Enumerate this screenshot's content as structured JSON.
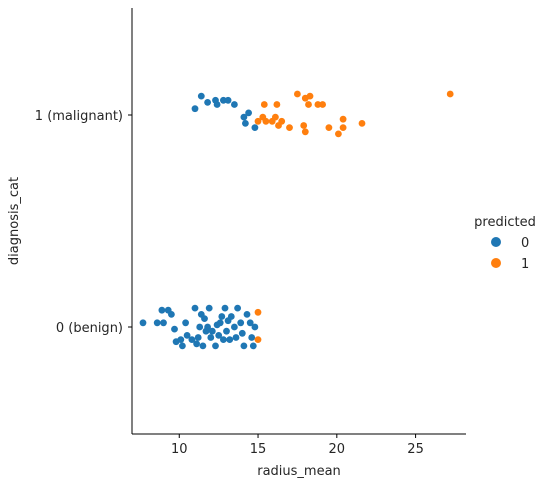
{
  "chart_data": {
    "type": "scatter",
    "subtype": "strip",
    "title": "",
    "xlabel": "radius_mean",
    "ylabel": "diagnosis_cat",
    "xlim": [
      7.0,
      28.2
    ],
    "xticks": [
      10,
      15,
      20,
      25
    ],
    "categories": [
      "1 (malignant)",
      "0 (benign)"
    ],
    "grid": false,
    "legend": {
      "title": "predicted",
      "placement": "right",
      "entries": [
        {
          "label": "0",
          "color": "#1f77b4"
        },
        {
          "label": "1",
          "color": "#ff7f0e"
        }
      ]
    },
    "series": [
      {
        "name": "0",
        "color": "#1f77b4",
        "points": [
          {
            "category": "1 (malignant)",
            "x": 11.0,
            "jitter": 0.03
          },
          {
            "category": "1 (malignant)",
            "x": 11.4,
            "jitter": 0.09
          },
          {
            "category": "1 (malignant)",
            "x": 11.8,
            "jitter": 0.06
          },
          {
            "category": "1 (malignant)",
            "x": 12.3,
            "jitter": 0.07
          },
          {
            "category": "1 (malignant)",
            "x": 12.4,
            "jitter": 0.05
          },
          {
            "category": "1 (malignant)",
            "x": 12.8,
            "jitter": 0.07
          },
          {
            "category": "1 (malignant)",
            "x": 13.1,
            "jitter": 0.07
          },
          {
            "category": "1 (malignant)",
            "x": 13.5,
            "jitter": 0.05
          },
          {
            "category": "1 (malignant)",
            "x": 14.1,
            "jitter": -0.01
          },
          {
            "category": "1 (malignant)",
            "x": 14.2,
            "jitter": -0.04
          },
          {
            "category": "1 (malignant)",
            "x": 14.4,
            "jitter": 0.01
          },
          {
            "category": "1 (malignant)",
            "x": 14.8,
            "jitter": -0.06
          },
          {
            "category": "0 (benign)",
            "x": 7.7,
            "jitter": 0.02
          },
          {
            "category": "0 (benign)",
            "x": 8.6,
            "jitter": 0.02
          },
          {
            "category": "0 (benign)",
            "x": 8.9,
            "jitter": 0.08
          },
          {
            "category": "0 (benign)",
            "x": 9.0,
            "jitter": 0.02
          },
          {
            "category": "0 (benign)",
            "x": 9.3,
            "jitter": 0.08
          },
          {
            "category": "0 (benign)",
            "x": 9.5,
            "jitter": 0.06
          },
          {
            "category": "0 (benign)",
            "x": 9.7,
            "jitter": -0.01
          },
          {
            "category": "0 (benign)",
            "x": 9.8,
            "jitter": -0.07
          },
          {
            "category": "0 (benign)",
            "x": 10.1,
            "jitter": -0.06
          },
          {
            "category": "0 (benign)",
            "x": 10.2,
            "jitter": -0.09
          },
          {
            "category": "0 (benign)",
            "x": 10.4,
            "jitter": 0.02
          },
          {
            "category": "0 (benign)",
            "x": 10.5,
            "jitter": -0.04
          },
          {
            "category": "0 (benign)",
            "x": 10.8,
            "jitter": -0.06
          },
          {
            "category": "0 (benign)",
            "x": 11.0,
            "jitter": 0.09
          },
          {
            "category": "0 (benign)",
            "x": 11.1,
            "jitter": -0.08
          },
          {
            "category": "0 (benign)",
            "x": 11.2,
            "jitter": -0.05
          },
          {
            "category": "0 (benign)",
            "x": 11.3,
            "jitter": 0.0
          },
          {
            "category": "0 (benign)",
            "x": 11.4,
            "jitter": 0.06
          },
          {
            "category": "0 (benign)",
            "x": 11.5,
            "jitter": -0.09
          },
          {
            "category": "0 (benign)",
            "x": 11.6,
            "jitter": 0.04
          },
          {
            "category": "0 (benign)",
            "x": 11.7,
            "jitter": -0.02
          },
          {
            "category": "0 (benign)",
            "x": 11.8,
            "jitter": 0.0
          },
          {
            "category": "0 (benign)",
            "x": 11.9,
            "jitter": 0.09
          },
          {
            "category": "0 (benign)",
            "x": 12.0,
            "jitter": -0.05
          },
          {
            "category": "0 (benign)",
            "x": 12.1,
            "jitter": -0.02
          },
          {
            "category": "0 (benign)",
            "x": 12.3,
            "jitter": -0.09
          },
          {
            "category": "0 (benign)",
            "x": 12.4,
            "jitter": 0.01
          },
          {
            "category": "0 (benign)",
            "x": 12.5,
            "jitter": -0.04
          },
          {
            "category": "0 (benign)",
            "x": 12.6,
            "jitter": 0.02
          },
          {
            "category": "0 (benign)",
            "x": 12.7,
            "jitter": 0.05
          },
          {
            "category": "0 (benign)",
            "x": 12.8,
            "jitter": -0.06
          },
          {
            "category": "0 (benign)",
            "x": 12.9,
            "jitter": 0.09
          },
          {
            "category": "0 (benign)",
            "x": 13.0,
            "jitter": -0.02
          },
          {
            "category": "0 (benign)",
            "x": 13.1,
            "jitter": 0.03
          },
          {
            "category": "0 (benign)",
            "x": 13.2,
            "jitter": -0.06
          },
          {
            "category": "0 (benign)",
            "x": 13.3,
            "jitter": 0.05
          },
          {
            "category": "0 (benign)",
            "x": 13.5,
            "jitter": 0.0
          },
          {
            "category": "0 (benign)",
            "x": 13.6,
            "jitter": -0.05
          },
          {
            "category": "0 (benign)",
            "x": 13.7,
            "jitter": 0.09
          },
          {
            "category": "0 (benign)",
            "x": 13.9,
            "jitter": 0.02
          },
          {
            "category": "0 (benign)",
            "x": 14.0,
            "jitter": -0.03
          },
          {
            "category": "0 (benign)",
            "x": 14.1,
            "jitter": -0.09
          },
          {
            "category": "0 (benign)",
            "x": 14.3,
            "jitter": 0.06
          },
          {
            "category": "0 (benign)",
            "x": 14.5,
            "jitter": 0.02
          },
          {
            "category": "0 (benign)",
            "x": 14.6,
            "jitter": -0.05
          },
          {
            "category": "0 (benign)",
            "x": 14.7,
            "jitter": -0.09
          },
          {
            "category": "0 (benign)",
            "x": 14.8,
            "jitter": 0.0
          }
        ]
      },
      {
        "name": "1",
        "color": "#ff7f0e",
        "points": [
          {
            "category": "1 (malignant)",
            "x": 15.0,
            "jitter": -0.03
          },
          {
            "category": "1 (malignant)",
            "x": 15.3,
            "jitter": -0.01
          },
          {
            "category": "1 (malignant)",
            "x": 15.4,
            "jitter": 0.05
          },
          {
            "category": "1 (malignant)",
            "x": 15.5,
            "jitter": -0.03
          },
          {
            "category": "1 (malignant)",
            "x": 15.9,
            "jitter": -0.03
          },
          {
            "category": "1 (malignant)",
            "x": 16.1,
            "jitter": -0.01
          },
          {
            "category": "1 (malignant)",
            "x": 16.2,
            "jitter": 0.05
          },
          {
            "category": "1 (malignant)",
            "x": 16.3,
            "jitter": -0.05
          },
          {
            "category": "1 (malignant)",
            "x": 16.5,
            "jitter": -0.03
          },
          {
            "category": "1 (malignant)",
            "x": 17.0,
            "jitter": -0.06
          },
          {
            "category": "1 (malignant)",
            "x": 17.5,
            "jitter": 0.1
          },
          {
            "category": "1 (malignant)",
            "x": 17.9,
            "jitter": -0.05
          },
          {
            "category": "1 (malignant)",
            "x": 18.0,
            "jitter": -0.08
          },
          {
            "category": "1 (malignant)",
            "x": 18.2,
            "jitter": 0.05
          },
          {
            "category": "1 (malignant)",
            "x": 18.3,
            "jitter": 0.09
          },
          {
            "category": "1 (malignant)",
            "x": 18.0,
            "jitter": 0.08
          },
          {
            "category": "1 (malignant)",
            "x": 18.8,
            "jitter": 0.05
          },
          {
            "category": "1 (malignant)",
            "x": 19.1,
            "jitter": 0.05
          },
          {
            "category": "1 (malignant)",
            "x": 19.5,
            "jitter": -0.06
          },
          {
            "category": "1 (malignant)",
            "x": 20.1,
            "jitter": -0.09
          },
          {
            "category": "1 (malignant)",
            "x": 20.4,
            "jitter": -0.02
          },
          {
            "category": "1 (malignant)",
            "x": 20.4,
            "jitter": -0.06
          },
          {
            "category": "1 (malignant)",
            "x": 21.6,
            "jitter": -0.04
          },
          {
            "category": "1 (malignant)",
            "x": 27.2,
            "jitter": 0.1
          },
          {
            "category": "0 (benign)",
            "x": 15.0,
            "jitter": 0.07
          },
          {
            "category": "0 (benign)",
            "x": 15.0,
            "jitter": -0.06
          }
        ]
      }
    ]
  }
}
